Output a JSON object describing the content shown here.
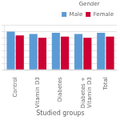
{
  "chart_data": {
    "type": "bar",
    "xlabel": "Studied groups",
    "categories": [
      "Control",
      "Vitamin D3",
      "Diabetes",
      "Diabetes +\nVitamin D3",
      "Total"
    ],
    "series": [
      {
        "name": "Male",
        "color": "#5b9bd5",
        "values": [
          30,
          28,
          29,
          28,
          29
        ]
      },
      {
        "name": "Female",
        "color": "#cc0033",
        "values": [
          27,
          25,
          26,
          25,
          26
        ]
      }
    ],
    "legend_title": "Gender",
    "legend": "upper right",
    "ylim": [
      0,
      35
    ],
    "yticks": [
      0,
      5,
      10,
      15,
      20,
      25,
      30,
      35
    ],
    "grid": true,
    "tick_labels": "x"
  }
}
